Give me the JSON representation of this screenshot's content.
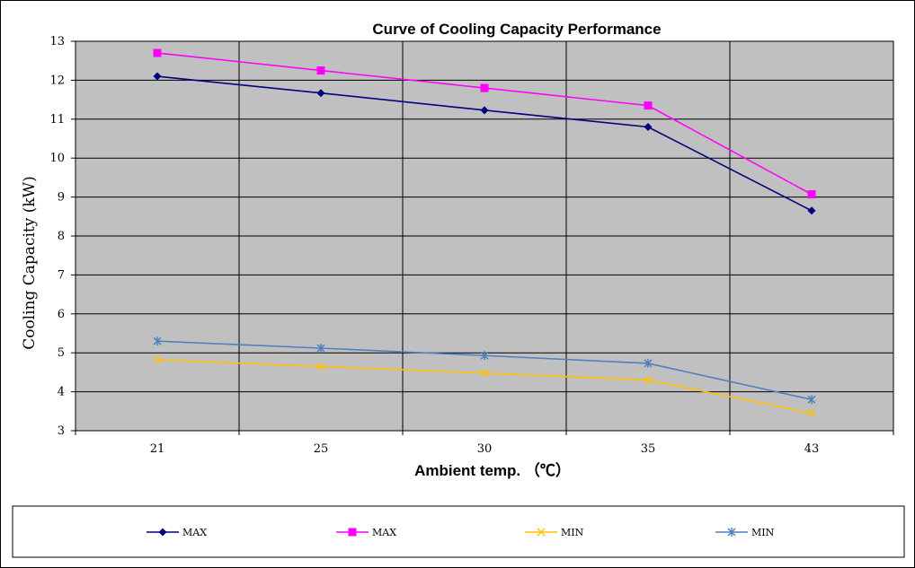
{
  "chart_data": {
    "type": "line",
    "title": "Curve of Cooling Capacity Performance",
    "xlabel": "Ambient temp. （℃）",
    "ylabel": "Cooling Capacity (kW)",
    "categories": [
      "21",
      "25",
      "30",
      "35",
      "43"
    ],
    "ylim": [
      3,
      13
    ],
    "yticks": [
      "3",
      "4",
      "5",
      "6",
      "7",
      "8",
      "9",
      "10",
      "11",
      "12",
      "13"
    ],
    "grid": true,
    "legend_position": "bottom",
    "series": [
      {
        "name": "MAX",
        "values": [
          12.1,
          11.67,
          11.23,
          10.8,
          8.65
        ],
        "color": "#000080",
        "marker": "diamond"
      },
      {
        "name": "MAX",
        "values": [
          12.7,
          12.25,
          11.8,
          11.35,
          9.07
        ],
        "color": "#ff00ff",
        "marker": "square"
      },
      {
        "name": "MIN",
        "values": [
          4.82,
          4.65,
          4.48,
          4.3,
          3.45
        ],
        "color": "#ffc000",
        "marker": "x"
      },
      {
        "name": "MIN",
        "values": [
          5.3,
          5.12,
          4.93,
          4.73,
          3.8
        ],
        "color": "#4f81bd",
        "marker": "star"
      }
    ],
    "plot_background": "#c0c0c0"
  }
}
